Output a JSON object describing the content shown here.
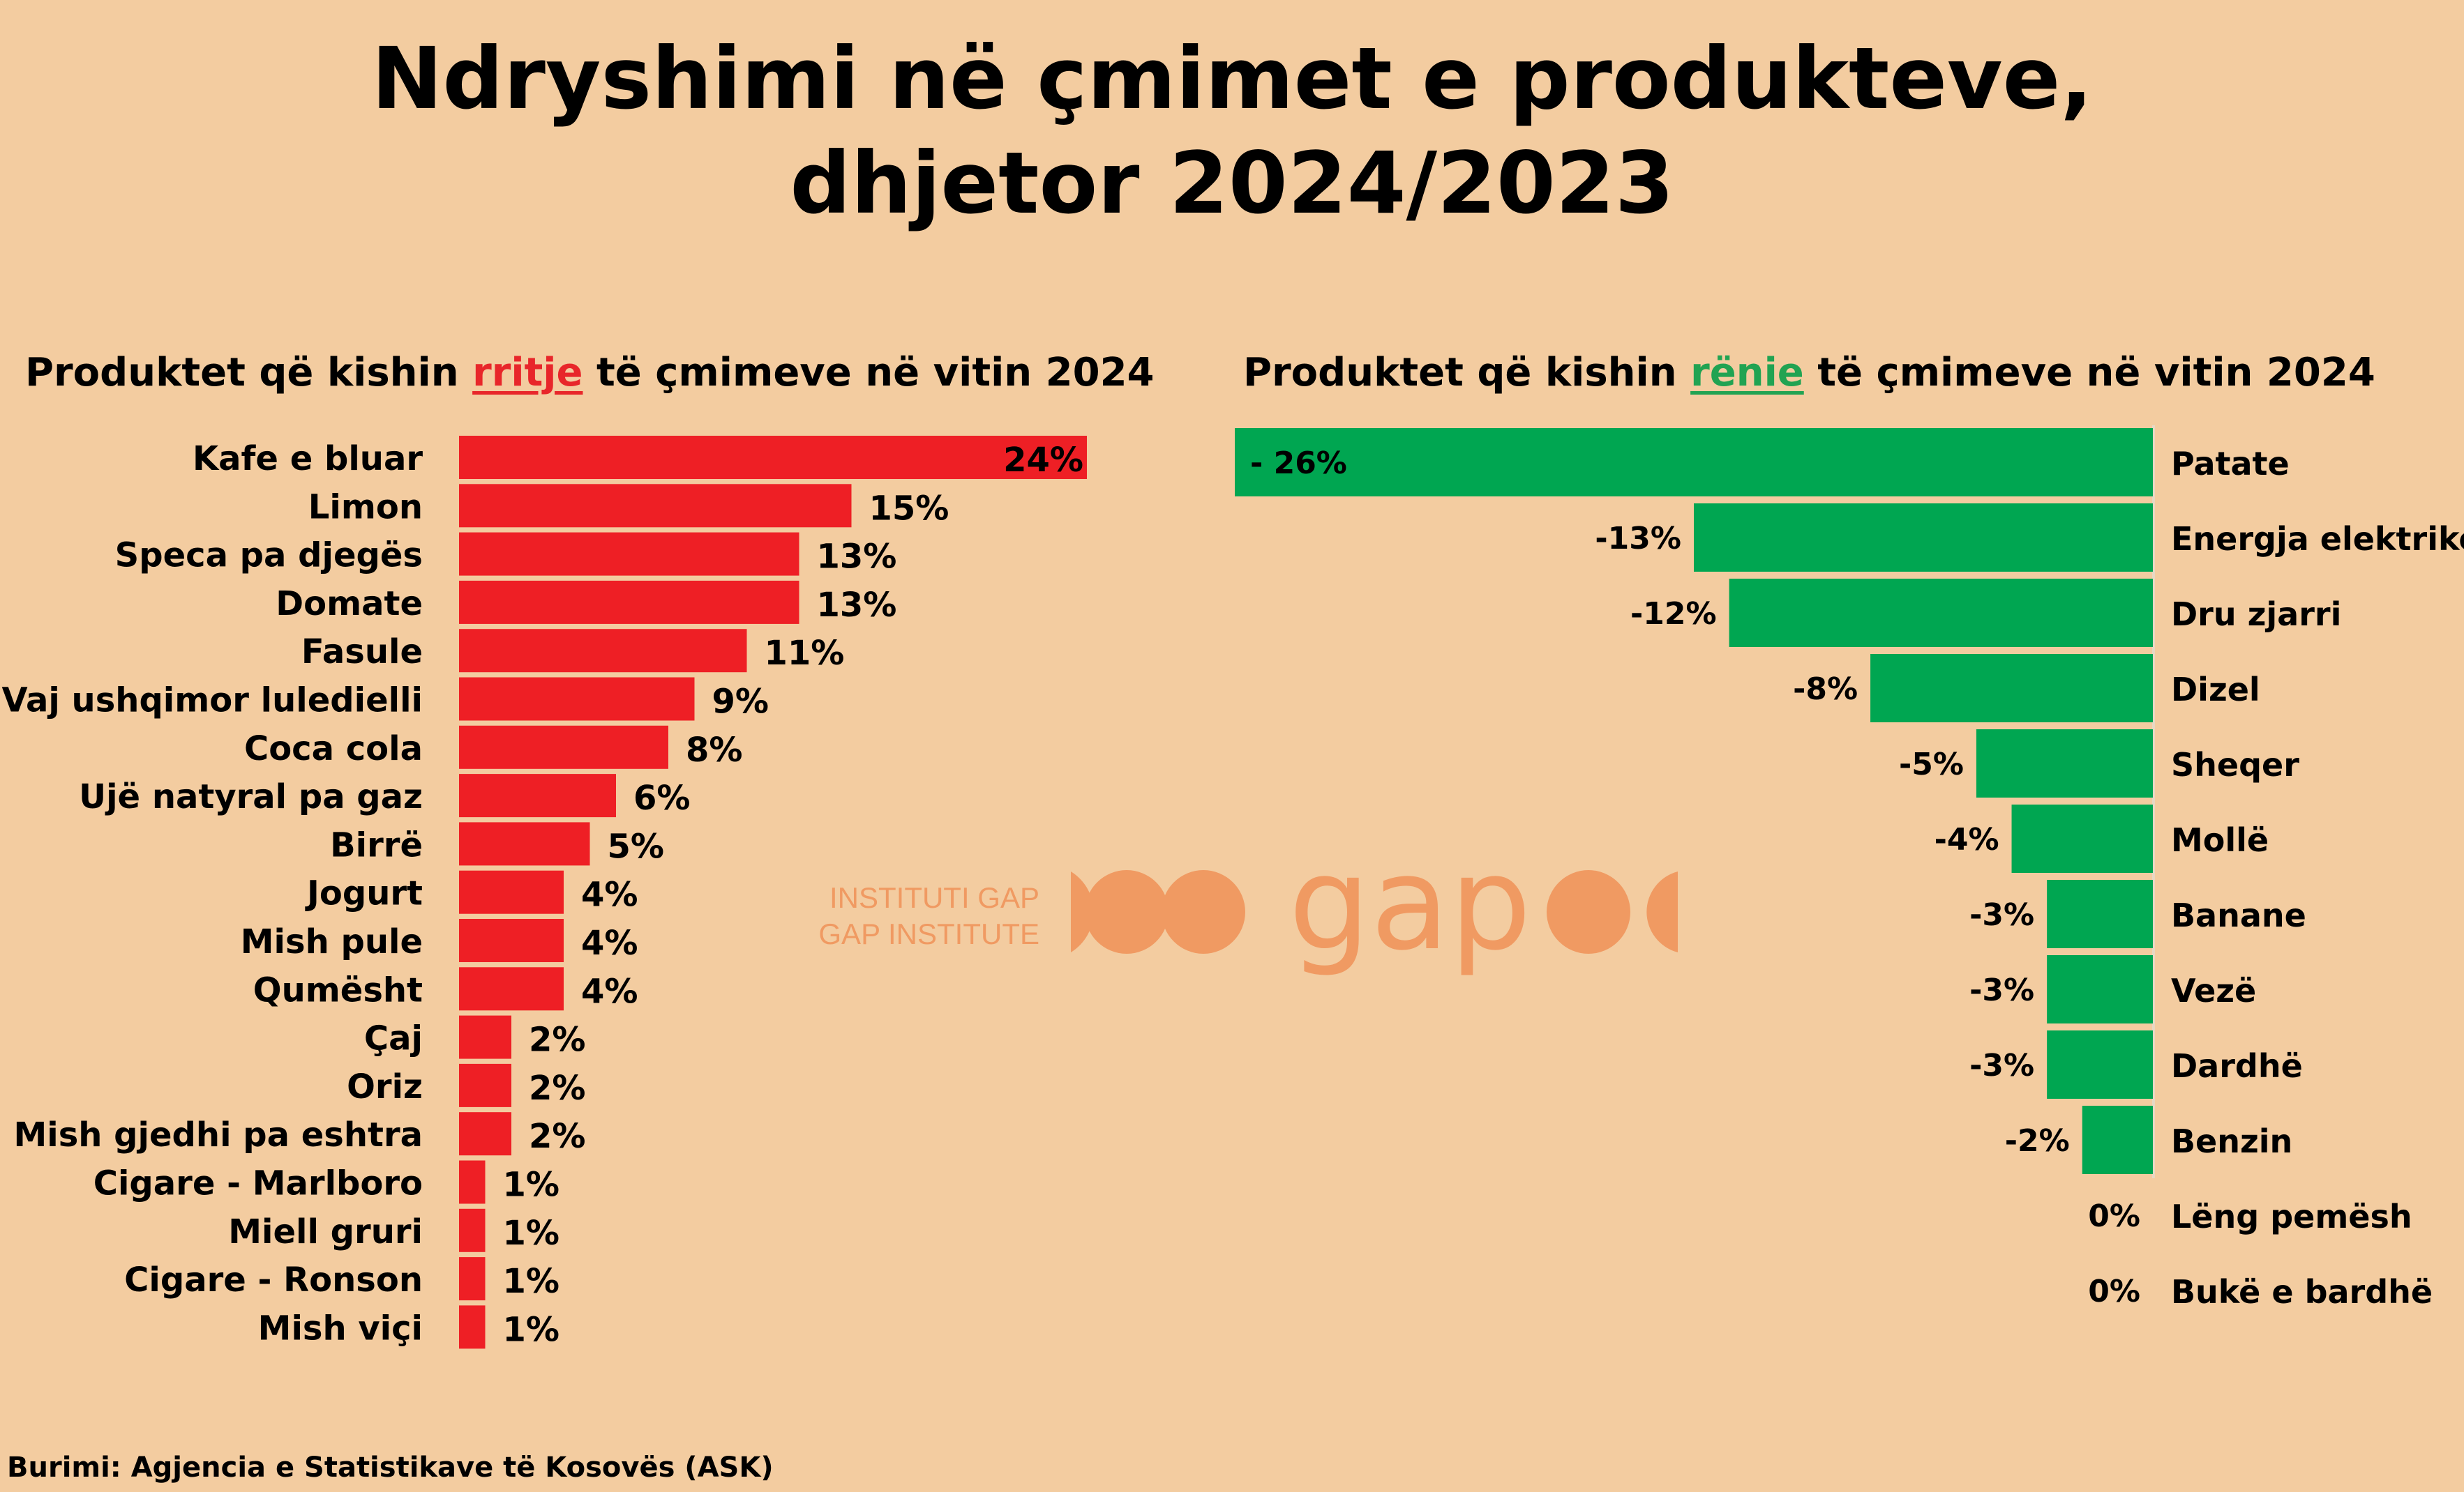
{
  "title_line1": "Ndryshimi në çmimet e produkteve,",
  "title_line2": "dhjetor 2024/2023",
  "left_subtitle": {
    "pre": "Produktet që kishin ",
    "highlight": "rritje",
    "post": " të çmimeve në vitin 2024"
  },
  "right_subtitle": {
    "pre": "Produktet që kishin ",
    "highlight": "rënie",
    "post": " të çmimeve në vitin 2024"
  },
  "watermark": {
    "line1": "INSTITUTI GAP",
    "line2": "GAP INSTITUTE",
    "logo_text": "gap"
  },
  "source": "Burimi: Agjencia e Statistikave të Kosovës (ASK)",
  "colors": {
    "background": "#f3cca0",
    "increase": "#ee1f25",
    "decrease": "#00a651",
    "watermark": "#f09a62"
  },
  "chart_data": [
    {
      "type": "bar",
      "orientation": "horizontal",
      "title": "Produktet që kishin rritje të çmimeve në vitin 2024",
      "categories": [
        "Kafe e bluar",
        "Limon",
        "Speca  pa djegës",
        "Domate",
        "Fasule",
        "Vaj ushqimor luledielli",
        "Coca cola",
        "Ujë natyral pa gaz",
        "Birrë",
        "Jogurt",
        "Mish pule",
        "Qumësht",
        "Çaj",
        "Oriz",
        "Mish gjedhi pa eshtra",
        "Cigare - Marlboro",
        "Miell gruri",
        "Cigare - Ronson",
        "Mish viçi"
      ],
      "values": [
        24,
        15,
        13,
        13,
        11,
        9,
        8,
        6,
        5,
        4,
        4,
        4,
        2,
        2,
        2,
        1,
        1,
        1,
        1
      ],
      "labels": [
        "24%",
        "15%",
        "13%",
        "13%",
        "11%",
        "9%",
        "8%",
        "6%",
        "5%",
        "4%",
        "4%",
        "4%",
        "2%",
        "2%",
        "2%",
        "1%",
        "1%",
        "1%",
        "1%"
      ],
      "color": "#ee1f25",
      "xlim": [
        0,
        24
      ],
      "grid": false
    },
    {
      "type": "bar",
      "orientation": "horizontal",
      "title": "Produktet që kishin rënie të çmimeve në vitin 2024",
      "categories": [
        "Patate",
        "Energja elektrike",
        "Dru zjarri",
        "Dizel",
        "Sheqer",
        "Mollë",
        "Banane",
        "Vezë",
        "Dardhë",
        "Benzin",
        "Lëng pemësh",
        "Bukë e bardhë"
      ],
      "values": [
        -26,
        -13,
        -12,
        -8,
        -5,
        -4,
        -3,
        -3,
        -3,
        -2,
        0,
        0
      ],
      "labels": [
        "- 26%",
        "-13%",
        "-12%",
        "-8%",
        "-5%",
        "-4%",
        "-3%",
        "-3%",
        "-3%",
        "-2%",
        "0%",
        "0%"
      ],
      "color": "#00a651",
      "xlim": [
        -26,
        0
      ],
      "grid": false
    }
  ]
}
